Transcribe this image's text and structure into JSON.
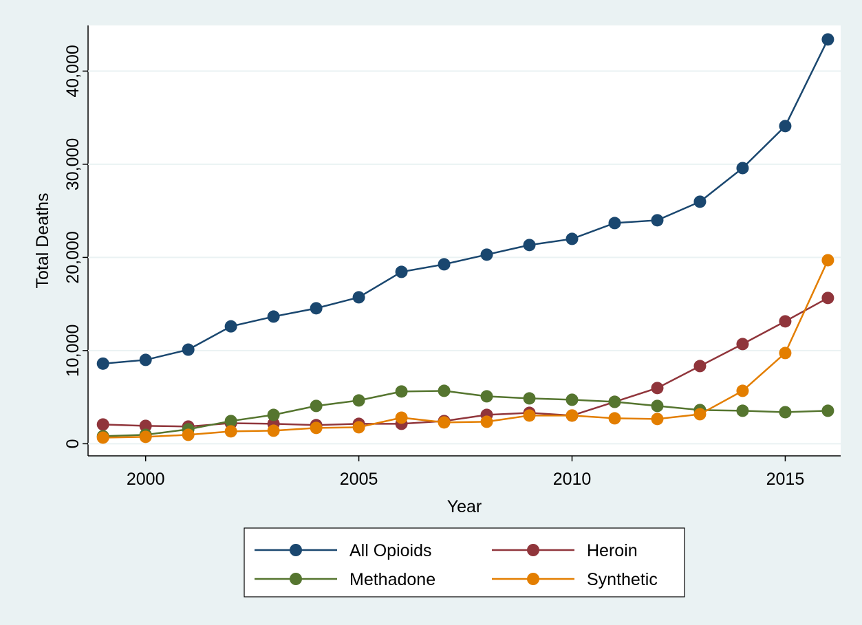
{
  "chart_data": {
    "type": "line",
    "x_label": "Year",
    "y_label": "Total Deaths",
    "x": [
      1999,
      2000,
      2001,
      2002,
      2003,
      2004,
      2005,
      2006,
      2007,
      2008,
      2009,
      2010,
      2011,
      2012,
      2013,
      2014,
      2015,
      2016
    ],
    "series": [
      {
        "name": "All Opioids",
        "color": "#1a476f",
        "values": [
          8600,
          9000,
          10100,
          12600,
          13650,
          14540,
          15720,
          18450,
          19260,
          20300,
          21330,
          21990,
          23690,
          23990,
          25980,
          29590,
          34100,
          43400
        ]
      },
      {
        "name": "Heroin",
        "color": "#90353b",
        "values": [
          2070,
          1920,
          1850,
          2210,
          2140,
          2000,
          2140,
          2140,
          2440,
          3100,
          3320,
          3030,
          4500,
          5980,
          8340,
          10700,
          13140,
          15650
        ]
      },
      {
        "name": "Methadone",
        "color": "#55752f",
        "values": [
          810,
          960,
          1550,
          2440,
          3100,
          4060,
          4650,
          5610,
          5680,
          5090,
          4870,
          4720,
          4500,
          4060,
          3620,
          3540,
          3390,
          3540
        ]
      },
      {
        "name": "Synthetic",
        "color": "#e37e00",
        "values": [
          660,
          740,
          960,
          1330,
          1400,
          1700,
          1770,
          2800,
          2290,
          2360,
          3030,
          3030,
          2730,
          2660,
          3170,
          5680,
          9740,
          19700
        ]
      }
    ],
    "xlim": [
      1998.65,
      2016.3
    ],
    "ylim": [
      -1300,
      44900
    ],
    "xticks": [
      2000,
      2005,
      2010,
      2015
    ],
    "yticks": [
      0,
      {
        "value": 10000,
        "label": "10,000"
      },
      {
        "value": 20000,
        "label": "20,000"
      },
      {
        "value": 30000,
        "label": "30,000"
      },
      {
        "value": 40000,
        "label": "40,000"
      }
    ],
    "grid": true,
    "legend": "bottom"
  }
}
